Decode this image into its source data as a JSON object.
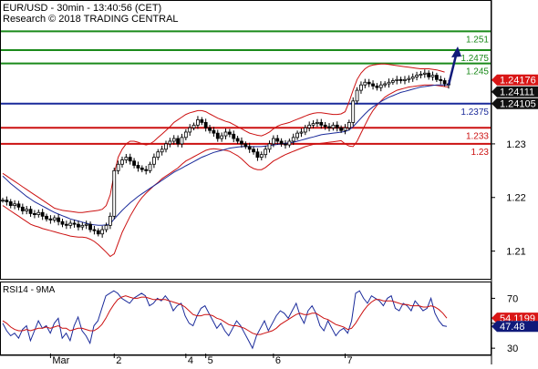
{
  "header": {
    "line1": "EUR/USD - 30min - 13:40:56 (CET)",
    "line2": "Research © 2018 TRADING CENTRAL"
  },
  "chart_data": [
    {
      "type": "candlestick",
      "panel": "price",
      "ylim": [
        1.205,
        1.2565
      ],
      "y_ticks": [
        1.21,
        1.22,
        1.23
      ],
      "x_ticks": [
        "Mar",
        "2",
        "4",
        "5",
        "6",
        "7"
      ],
      "levels": [
        {
          "value": 1.251,
          "label": "1.251",
          "color": "#1a8a1a"
        },
        {
          "value": 1.2475,
          "label": "1.2475",
          "color": "#1a8a1a"
        },
        {
          "value": 1.245,
          "label": "1.245",
          "color": "#1a8a1a"
        },
        {
          "value": 1.2375,
          "label": "1.2375",
          "color": "#1a2a9a"
        },
        {
          "value": 1.233,
          "label": "1.233",
          "color": "#cc1111"
        },
        {
          "value": 1.23,
          "label": "1.23",
          "color": "#cc1111"
        }
      ],
      "price_tags": [
        {
          "value": 1.24176,
          "label": "1.24176",
          "bg": "#d91616",
          "fg": "#ffffff"
        },
        {
          "value": 1.24111,
          "label": "1.24111",
          "bg": "#101010",
          "fg": "#ffffff"
        },
        {
          "value": 1.24105,
          "label": "1.24105",
          "bg": "#101010",
          "fg": "#ffffff"
        }
      ],
      "close": [
        1.2195,
        1.2192,
        1.2185,
        1.2188,
        1.2182,
        1.2175,
        1.2178,
        1.217,
        1.2168,
        1.2172,
        1.2165,
        1.216,
        1.2158,
        1.2162,
        1.2155,
        1.215,
        1.2148,
        1.2152,
        1.215,
        1.2145,
        1.2148,
        1.215,
        1.214,
        1.2138,
        1.2132,
        1.214,
        1.2148,
        1.2165,
        1.225,
        1.2262,
        1.227,
        1.2275,
        1.2268,
        1.226,
        1.2255,
        1.2252,
        1.225,
        1.2262,
        1.2275,
        1.2285,
        1.229,
        1.23,
        1.2305,
        1.231,
        1.23,
        1.2312,
        1.2322,
        1.233,
        1.2335,
        1.2345,
        1.234,
        1.233,
        1.2325,
        1.232,
        1.231,
        1.2315,
        1.2322,
        1.2318,
        1.231,
        1.2305,
        1.23,
        1.2295,
        1.229,
        1.2285,
        1.2275,
        1.228,
        1.229,
        1.23,
        1.231,
        1.2305,
        1.23,
        1.2298,
        1.2305,
        1.2312,
        1.232,
        1.2322,
        1.233,
        1.2335,
        1.2338,
        1.234,
        1.2335,
        1.2332,
        1.233,
        1.2335,
        1.233,
        1.2325,
        1.233,
        1.234,
        1.238,
        1.24,
        1.241,
        1.2415,
        1.2412,
        1.2408,
        1.2405,
        1.241,
        1.2412,
        1.2415,
        1.2418,
        1.242,
        1.2418,
        1.242,
        1.2422,
        1.2425,
        1.2428,
        1.243,
        1.2432,
        1.2425,
        1.2428,
        1.242,
        1.2418,
        1.2412,
        1.241
      ],
      "bollinger_upper": [
        1.2245,
        1.224,
        1.2235,
        1.223,
        1.2225,
        1.222,
        1.2215,
        1.221,
        1.2205,
        1.22,
        1.2195,
        1.219,
        1.2185,
        1.218,
        1.2178,
        1.2176,
        1.2175,
        1.2174,
        1.2173,
        1.2172,
        1.2172,
        1.2173,
        1.2174,
        1.2175,
        1.2176,
        1.2178,
        1.2185,
        1.2205,
        1.2245,
        1.2275,
        1.229,
        1.23,
        1.2305,
        1.2305,
        1.2303,
        1.23,
        1.2298,
        1.23,
        1.2305,
        1.2312,
        1.2318,
        1.2325,
        1.2332,
        1.234,
        1.2345,
        1.235,
        1.2355,
        1.2358,
        1.236,
        1.2362,
        1.2362,
        1.236,
        1.2356,
        1.2352,
        1.2348,
        1.2345,
        1.2342,
        1.234,
        1.2336,
        1.2332,
        1.2328,
        1.2324,
        1.232,
        1.2318,
        1.2316,
        1.2315,
        1.2318,
        1.2322,
        1.2328,
        1.2333,
        1.2336,
        1.2338,
        1.234,
        1.2343,
        1.2346,
        1.2349,
        1.2352,
        1.2355,
        1.2357,
        1.2358,
        1.2358,
        1.2357,
        1.2356,
        1.2355,
        1.2355,
        1.2356,
        1.236,
        1.2378,
        1.24,
        1.242,
        1.2432,
        1.244,
        1.2445,
        1.2447,
        1.2448,
        1.2449,
        1.2449,
        1.2448,
        1.2447,
        1.2446,
        1.2445,
        1.2444,
        1.2443,
        1.2442,
        1.2441,
        1.244,
        1.244,
        1.244,
        1.2439,
        1.2438,
        1.2436,
        1.2434
      ],
      "bollinger_lower": [
        1.2185,
        1.218,
        1.2175,
        1.217,
        1.2165,
        1.216,
        1.2155,
        1.215,
        1.2147,
        1.2145,
        1.2142,
        1.214,
        1.2138,
        1.2136,
        1.2134,
        1.2132,
        1.213,
        1.2128,
        1.2127,
        1.2126,
        1.2126,
        1.2125,
        1.2122,
        1.2118,
        1.2112,
        1.2105,
        1.2098,
        1.209,
        1.2095,
        1.2115,
        1.2135,
        1.215,
        1.2165,
        1.2178,
        1.219,
        1.22,
        1.2208,
        1.2215,
        1.2222,
        1.2228,
        1.2235,
        1.224,
        1.2245,
        1.225,
        1.2255,
        1.2262,
        1.2268,
        1.2272,
        1.2276,
        1.228,
        1.2284,
        1.2288,
        1.229,
        1.2291,
        1.229,
        1.2289,
        1.2288,
        1.2286,
        1.2282,
        1.2278,
        1.2272,
        1.2265,
        1.2258,
        1.2254,
        1.2252,
        1.2252,
        1.2256,
        1.2262,
        1.2268,
        1.2272,
        1.2276,
        1.228,
        1.2283,
        1.2286,
        1.2289,
        1.2292,
        1.2295,
        1.2297,
        1.2299,
        1.23,
        1.2301,
        1.2302,
        1.2303,
        1.2304,
        1.2305,
        1.2306,
        1.23,
        1.2296,
        1.2295,
        1.2305,
        1.232,
        1.2335,
        1.235,
        1.2362,
        1.2372,
        1.238,
        1.2387,
        1.2392,
        1.2396,
        1.24,
        1.2402,
        1.2404,
        1.2406,
        1.2407,
        1.2408,
        1.2409,
        1.241,
        1.241,
        1.241,
        1.2409,
        1.2408,
        1.2407,
        1.2406
      ],
      "ma_long": [
        1.224,
        1.2233,
        1.2226,
        1.222,
        1.2214,
        1.2208,
        1.2202,
        1.2197,
        1.2192,
        1.2188,
        1.2184,
        1.218,
        1.2176,
        1.2172,
        1.2169,
        1.2166,
        1.2163,
        1.216,
        1.2158,
        1.2156,
        1.2154,
        1.2152,
        1.215,
        1.2149,
        1.2148,
        1.2148,
        1.2149,
        1.2151,
        1.216,
        1.2168,
        1.2176,
        1.2183,
        1.219,
        1.2196,
        1.2202,
        1.2207,
        1.2212,
        1.2217,
        1.2222,
        1.2227,
        1.2232,
        1.2237,
        1.2242,
        1.2247,
        1.2251,
        1.2255,
        1.2259,
        1.2263,
        1.2267,
        1.2271,
        1.2275,
        1.2278,
        1.2281,
        1.2284,
        1.2286,
        1.2288,
        1.229,
        1.2292,
        1.2293,
        1.2294,
        1.2295,
        1.2295,
        1.2295,
        1.2295,
        1.2295,
        1.2295,
        1.2296,
        1.2297,
        1.2298,
        1.2299,
        1.23,
        1.2301,
        1.2302,
        1.2303,
        1.2305,
        1.2307,
        1.2309,
        1.2311,
        1.2313,
        1.2315,
        1.2317,
        1.2318,
        1.2319,
        1.232,
        1.2321,
        1.2322,
        1.2323,
        1.2326,
        1.2332,
        1.234,
        1.2348,
        1.2356,
        1.2363,
        1.2369,
        1.2374,
        1.2379,
        1.2383,
        1.2387,
        1.239,
        1.2393,
        1.2396,
        1.2398,
        1.24,
        1.2402,
        1.2404,
        1.2406,
        1.2407,
        1.2408,
        1.2409,
        1.241,
        1.241,
        1.241,
        1.241
      ]
    },
    {
      "type": "line",
      "panel": "rsi",
      "title": "RSI14 - 9MA",
      "ylim": [
        25,
        82
      ],
      "y_ticks": [
        30,
        50,
        70
      ],
      "price_tags": [
        {
          "value": 54.1199,
          "label": "54.1199",
          "bg": "#d91616",
          "fg": "#ffffff"
        },
        {
          "value": 47.48,
          "label": "47.48",
          "bg": "#101a7a",
          "fg": "#ffffff"
        }
      ],
      "series": [
        {
          "color": "#1a2a9a",
          "values": [
            50,
            44,
            40,
            42,
            38,
            45,
            48,
            36,
            44,
            52,
            46,
            48,
            42,
            50,
            54,
            38,
            42,
            36,
            48,
            55,
            44,
            40,
            34,
            48,
            52,
            62,
            72,
            74,
            76,
            74,
            70,
            68,
            66,
            70,
            72,
            74,
            72,
            64,
            66,
            70,
            68,
            72,
            68,
            60,
            64,
            66,
            56,
            50,
            48,
            56,
            62,
            64,
            58,
            52,
            46,
            50,
            44,
            40,
            46,
            52,
            48,
            42,
            36,
            30,
            40,
            46,
            52,
            44,
            50,
            56,
            60,
            58,
            54,
            60,
            66,
            56,
            50,
            60,
            64,
            58,
            48,
            44,
            52,
            46,
            40,
            44,
            46,
            42,
            52,
            74,
            76,
            70,
            66,
            72,
            70,
            68,
            64,
            70,
            72,
            62,
            60,
            66,
            64,
            60,
            68,
            64,
            60,
            62,
            70,
            58,
            52,
            48,
            47.5
          ]
        },
        {
          "color": "#cc1111",
          "values": [
            52,
            50,
            47,
            45,
            44,
            44,
            45,
            44,
            45,
            46,
            46,
            47,
            46,
            47,
            48,
            46,
            46,
            44,
            45,
            46,
            46,
            45,
            44,
            44,
            46,
            49,
            54,
            60,
            65,
            69,
            71,
            72,
            71,
            70,
            70,
            71,
            71,
            70,
            69,
            69,
            69,
            69,
            68,
            67,
            66,
            65,
            63,
            60,
            57,
            56,
            56,
            57,
            57,
            56,
            54,
            53,
            51,
            49,
            48,
            48,
            47,
            46,
            44,
            42,
            41,
            41,
            42,
            43,
            44,
            46,
            49,
            51,
            53,
            55,
            57,
            58,
            57,
            57,
            58,
            58,
            56,
            54,
            53,
            51,
            49,
            48,
            47,
            45,
            46,
            50,
            55,
            60,
            64,
            67,
            69,
            69,
            68,
            68,
            68,
            67,
            66,
            65,
            65,
            64,
            64,
            64,
            63,
            63,
            64,
            63,
            61,
            58,
            54.1
          ]
        }
      ]
    }
  ]
}
